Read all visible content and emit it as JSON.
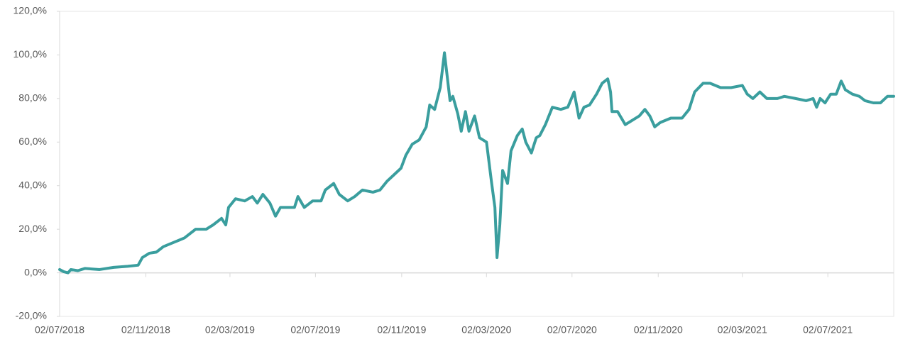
{
  "chart_data": {
    "type": "line",
    "color": "#3a9e9e",
    "xlim": [
      "2018-07-02",
      "2021-10-04"
    ],
    "xticks": [
      {
        "value": "2018-07-02",
        "label": "02/07/2018"
      },
      {
        "value": "2018-11-02",
        "label": "02/11/2018"
      },
      {
        "value": "2019-03-02",
        "label": "02/03/2019"
      },
      {
        "value": "2019-07-02",
        "label": "02/07/2019"
      },
      {
        "value": "2019-11-02",
        "label": "02/11/2019"
      },
      {
        "value": "2020-03-02",
        "label": "02/03/2020"
      },
      {
        "value": "2020-07-02",
        "label": "02/07/2020"
      },
      {
        "value": "2020-11-02",
        "label": "02/11/2020"
      },
      {
        "value": "2021-03-02",
        "label": "02/03/2021"
      },
      {
        "value": "2021-07-02",
        "label": "02/07/2021"
      }
    ],
    "ylim": [
      -20,
      120
    ],
    "yticks": [
      {
        "value": -20,
        "label": "-20,0%"
      },
      {
        "value": 0,
        "label": "0,0%"
      },
      {
        "value": 20,
        "label": "20,0%"
      },
      {
        "value": 40,
        "label": "40,0%"
      },
      {
        "value": 60,
        "label": "60,0%"
      },
      {
        "value": 80,
        "label": "80,0%"
      },
      {
        "value": 100,
        "label": "100,0%"
      },
      {
        "value": 120,
        "label": "120,0%"
      }
    ],
    "x": [
      "2018-07-02",
      "2018-07-08",
      "2018-07-14",
      "2018-07-18",
      "2018-07-28",
      "2018-08-07",
      "2018-08-28",
      "2018-09-17",
      "2018-10-07",
      "2018-10-22",
      "2018-10-28",
      "2018-11-07",
      "2018-11-17",
      "2018-11-27",
      "2018-12-12",
      "2018-12-27",
      "2019-01-12",
      "2019-01-27",
      "2019-02-06",
      "2019-02-18",
      "2019-02-24",
      "2019-02-28",
      "2019-03-10",
      "2019-03-23",
      "2019-04-03",
      "2019-04-10",
      "2019-04-18",
      "2019-04-28",
      "2019-05-06",
      "2019-05-13",
      "2019-05-23",
      "2019-06-02",
      "2019-06-07",
      "2019-06-16",
      "2019-06-28",
      "2019-07-10",
      "2019-07-16",
      "2019-07-28",
      "2019-08-05",
      "2019-08-17",
      "2019-08-27",
      "2019-09-07",
      "2019-09-22",
      "2019-10-02",
      "2019-10-12",
      "2019-10-22",
      "2019-11-01",
      "2019-11-08",
      "2019-11-17",
      "2019-11-27",
      "2019-12-07",
      "2019-12-12",
      "2019-12-19",
      "2019-12-27",
      "2020-01-02",
      "2020-01-06",
      "2020-01-10",
      "2020-01-14",
      "2020-01-21",
      "2020-01-26",
      "2020-02-01",
      "2020-02-06",
      "2020-02-14",
      "2020-02-21",
      "2020-03-02",
      "2020-03-09",
      "2020-03-14",
      "2020-03-17",
      "2020-03-21",
      "2020-03-25",
      "2020-04-01",
      "2020-04-06",
      "2020-04-15",
      "2020-04-22",
      "2020-04-27",
      "2020-05-05",
      "2020-05-12",
      "2020-05-17",
      "2020-05-25",
      "2020-06-04",
      "2020-06-16",
      "2020-06-26",
      "2020-07-05",
      "2020-07-12",
      "2020-07-19",
      "2020-07-27",
      "2020-08-06",
      "2020-08-14",
      "2020-08-22",
      "2020-08-26",
      "2020-08-28",
      "2020-09-05",
      "2020-09-16",
      "2020-09-26",
      "2020-10-06",
      "2020-10-14",
      "2020-10-21",
      "2020-10-28",
      "2020-11-05",
      "2020-11-20",
      "2020-12-06",
      "2020-12-16",
      "2020-12-24",
      "2021-01-05",
      "2021-01-15",
      "2021-01-30",
      "2021-02-14",
      "2021-03-02",
      "2021-03-09",
      "2021-03-17",
      "2021-03-27",
      "2021-04-06",
      "2021-04-21",
      "2021-05-01",
      "2021-05-17",
      "2021-06-01",
      "2021-06-11",
      "2021-06-16",
      "2021-06-21",
      "2021-06-28",
      "2021-07-06",
      "2021-07-14",
      "2021-07-21",
      "2021-07-27",
      "2021-08-06",
      "2021-08-16",
      "2021-08-24",
      "2021-09-05",
      "2021-09-15",
      "2021-09-25",
      "2021-10-04"
    ],
    "values": [
      1.5,
      0.5,
      0,
      1.5,
      1,
      2,
      1.5,
      2.5,
      3,
      3.5,
      7,
      9,
      9.5,
      12,
      14,
      16,
      20,
      20,
      22,
      25,
      22,
      30,
      34,
      33,
      35,
      32,
      36,
      32,
      26,
      30,
      30,
      30,
      35,
      30,
      33,
      33,
      38,
      41,
      36,
      33,
      35,
      38,
      37,
      38,
      42,
      45,
      48,
      54,
      59,
      61,
      67,
      77,
      75,
      85,
      101,
      90,
      79,
      81,
      73,
      65,
      74,
      65,
      72,
      62,
      60,
      42,
      30,
      7,
      22,
      47,
      41,
      56,
      63,
      66,
      60,
      55,
      62,
      63,
      68,
      76,
      75,
      76,
      83,
      71,
      76,
      77,
      82,
      87,
      89,
      83,
      74,
      74,
      68,
      70,
      72,
      75,
      72,
      67,
      69,
      71,
      71,
      75,
      83,
      87,
      87,
      85,
      85,
      86,
      82,
      80,
      83,
      80,
      80,
      81,
      80,
      79,
      80,
      76,
      80,
      78,
      82,
      82,
      88,
      84,
      82,
      81,
      79,
      78,
      78,
      81,
      81
    ]
  }
}
